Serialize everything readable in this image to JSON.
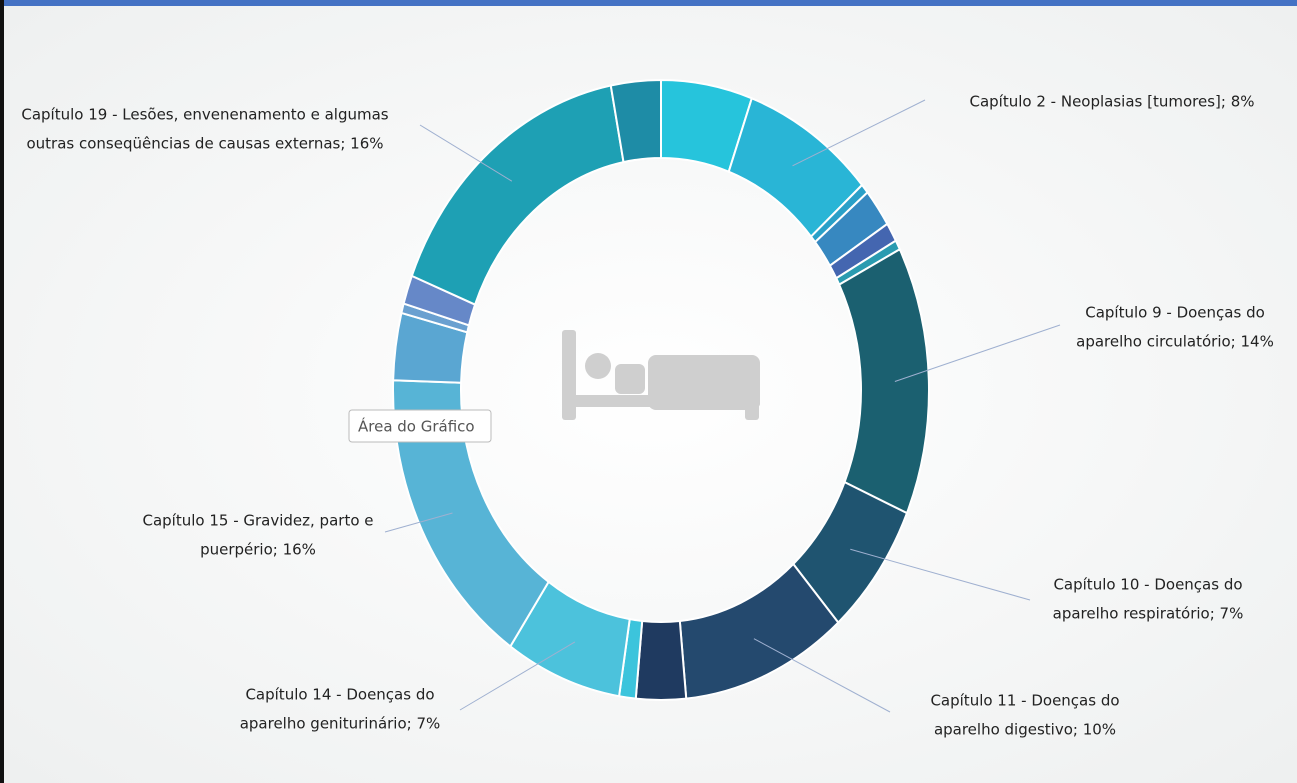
{
  "chart_data": {
    "type": "donut",
    "values": [
      5.5,
      8,
      0.5,
      2,
      1,
      0.5,
      14,
      7,
      10,
      3,
      1,
      7,
      16,
      3.5,
      0.5,
      1.5,
      16,
      3
    ],
    "value_labels": [
      null,
      [
        "Capítulo  2 - Neoplasias [tumores]; 8%"
      ],
      null,
      null,
      null,
      null,
      [
        "Capítulo  9 - Doenças do",
        "aparelho circulatório; 14%"
      ],
      [
        "Capítulo 10 - Doenças do",
        "aparelho respiratório; 7%"
      ],
      [
        "Capítulo 11 - Doenças do",
        "aparelho digestivo; 10%"
      ],
      null,
      null,
      [
        "Capítulo 14 - Doenças do",
        "aparelho geniturinário; 7%"
      ],
      [
        "Capítulo 15 - Gravidez, parto e",
        "puerpério; 16%"
      ],
      null,
      null,
      null,
      [
        "Capítulo 19 - Lesões, envenenamento e algumas",
        "outras conseqüências de causas externas; 16%"
      ],
      null
    ],
    "colors": [
      "#26c4dc",
      "#29b5d6",
      "#2aa0c8",
      "#3788c0",
      "#4466b0",
      "#2a9bb0",
      "#1b6070",
      "#1f5470",
      "#24496e",
      "#1f3a60",
      "#3cc4dc",
      "#4cc2dc",
      "#57b4d6",
      "#5aa6d2",
      "#6aa0d0",
      "#6688c8",
      "#1ea0b4",
      "#1e8ca6"
    ],
    "tooltip": "Área do Gráfico"
  }
}
